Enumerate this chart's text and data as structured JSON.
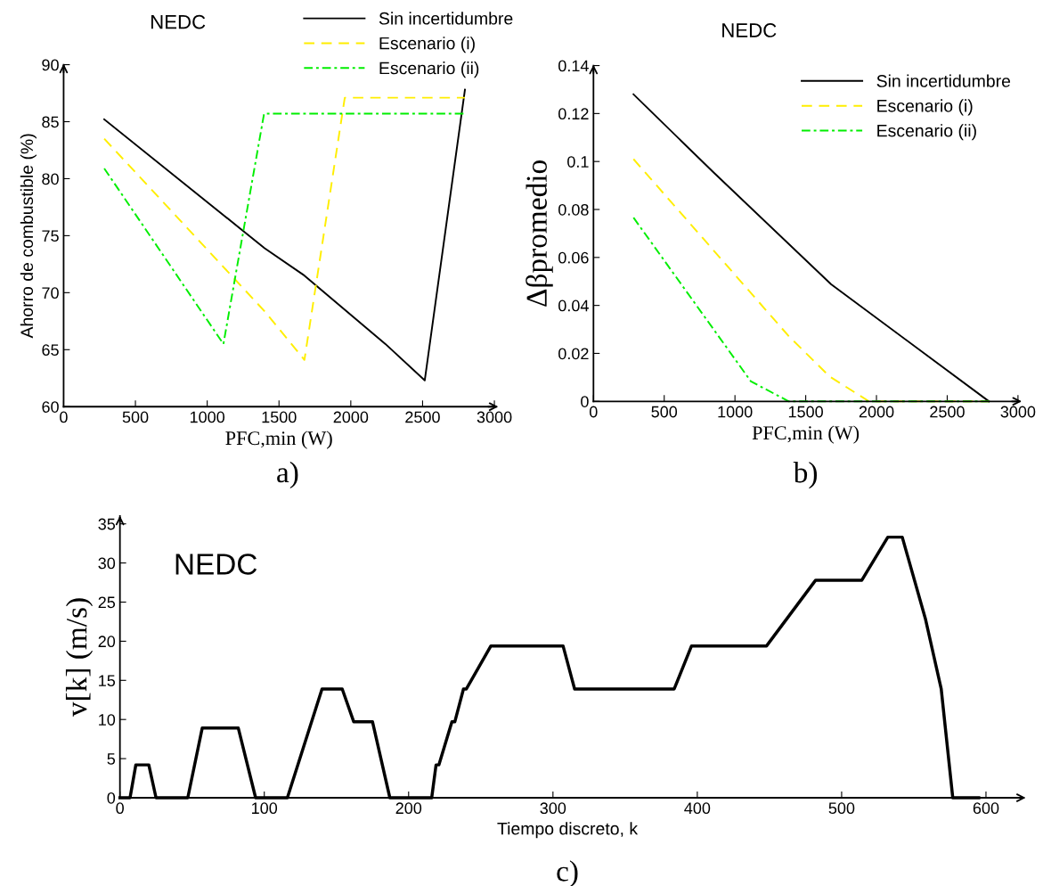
{
  "chart_data": [
    {
      "type": "line",
      "title": "NEDC",
      "xlabel": "PFC,min (W)",
      "ylabel": "Ahorro de combustible (%)",
      "annotations": [
        "a)"
      ],
      "xlim": [
        0,
        3000
      ],
      "ylim": [
        60,
        90
      ],
      "xticks": [
        0,
        500,
        1000,
        1500,
        2000,
        2500,
        3000
      ],
      "yticks": [
        60,
        65,
        70,
        75,
        80,
        85,
        90
      ],
      "grid": false,
      "legend": "top right",
      "series": [
        {
          "name": "Sin incertidumbre",
          "color": "#000000",
          "line_style": "solid",
          "x": [
            283,
            1400,
            1677,
            2241,
            2515,
            2795
          ],
          "values": [
            85.2,
            73.9,
            71.5,
            65.5,
            62.3,
            87.8
          ]
        },
        {
          "name": "Escenario (i)",
          "color": "#ffee00",
          "line_style": "dashed",
          "x": [
            283,
            1405,
            1677,
            1958,
            2795
          ],
          "values": [
            83.5,
            68.3,
            64.1,
            87.1,
            87.1
          ]
        },
        {
          "name": "Escenario (ii)",
          "color": "#00ee00",
          "line_style": "dashdot",
          "x": [
            283,
            1113,
            1396,
            2790
          ],
          "values": [
            80.9,
            65.5,
            85.7,
            85.7
          ]
        }
      ]
    },
    {
      "type": "line",
      "title": "NEDC",
      "xlabel": "PFC,min (W)",
      "ylabel": "Δβpromedio",
      "annotations": [
        "b)"
      ],
      "xlim": [
        0,
        3000
      ],
      "ylim": [
        0,
        0.14
      ],
      "xticks": [
        0,
        500,
        1000,
        1500,
        2000,
        2500,
        3000
      ],
      "yticks": [
        0,
        0.02,
        0.04,
        0.06,
        0.08,
        0.1,
        0.12,
        0.14
      ],
      "grid": false,
      "legend": "top right",
      "series": [
        {
          "name": "Sin incertidumbre",
          "color": "#000000",
          "line_style": "solid",
          "x": [
            283,
            846,
            1680,
            2795
          ],
          "values": [
            0.128,
            0.0956,
            0.0488,
            0
          ]
        },
        {
          "name": "Escenario (i)",
          "color": "#ffee00",
          "line_style": "dashed",
          "x": [
            283,
            1380,
            1668,
            1947,
            2795
          ],
          "values": [
            0.101,
            0.0272,
            0.0104,
            0,
            0
          ]
        },
        {
          "name": "Escenario (ii)",
          "color": "#00ee00",
          "line_style": "dashdot",
          "x": [
            283,
            1113,
            1380,
            2795
          ],
          "values": [
            0.0766,
            0.0083,
            0,
            0
          ]
        }
      ]
    },
    {
      "type": "line",
      "title": "NEDC",
      "xlabel": "Tiempo discreto, k",
      "ylabel": "v[k] (m/s)",
      "annotations": [
        "c)"
      ],
      "xlim": [
        0,
        620
      ],
      "ylim": [
        0,
        36
      ],
      "xticks": [
        0,
        100,
        200,
        300,
        400,
        500,
        600
      ],
      "yticks": [
        0,
        5,
        10,
        15,
        20,
        25,
        30,
        35
      ],
      "grid": false,
      "legend": false,
      "series": [
        {
          "color": "#000000",
          "line_style": "solid",
          "x": [
            0,
            7,
            11,
            20,
            25,
            47,
            57,
            60,
            82,
            94,
            116,
            140,
            143,
            154,
            162,
            175,
            187,
            216,
            219,
            221,
            230,
            232,
            238,
            240,
            257,
            307,
            315,
            384,
            396,
            448,
            482,
            514,
            532,
            542,
            558,
            569,
            577,
            595
          ],
          "values": [
            0,
            0,
            4.2,
            4.2,
            0,
            0,
            8.9,
            8.9,
            8.9,
            0,
            0,
            13.9,
            13.9,
            13.9,
            9.7,
            9.7,
            0,
            0,
            4.2,
            4.2,
            9.7,
            9.7,
            13.9,
            13.9,
            19.4,
            19.4,
            13.9,
            13.9,
            19.4,
            19.4,
            27.8,
            27.8,
            33.3,
            33.3,
            22.9,
            13.9,
            0,
            0
          ]
        }
      ]
    }
  ]
}
